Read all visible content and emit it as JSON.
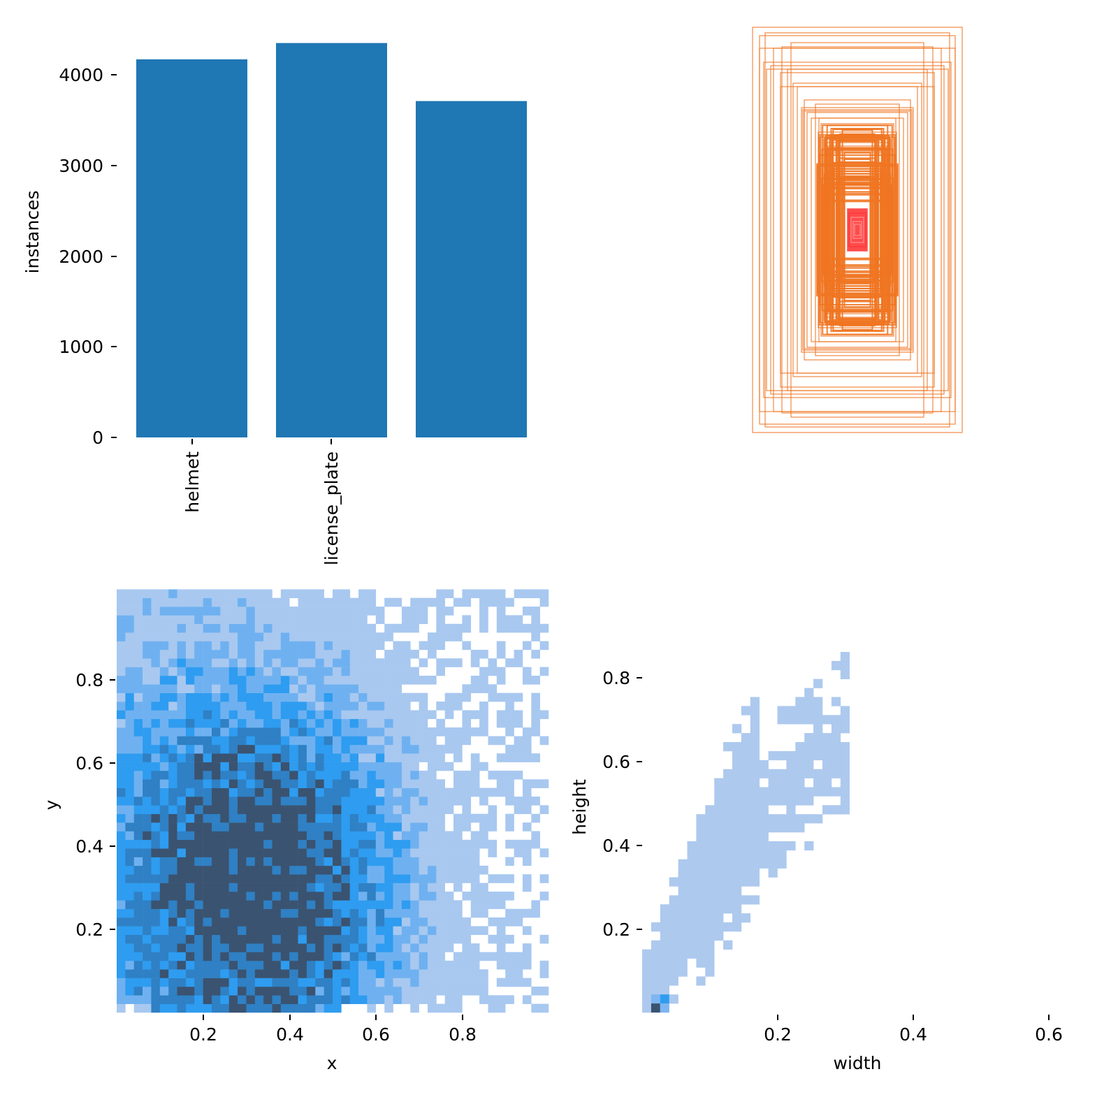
{
  "chart_data": [
    {
      "type": "bar",
      "panel": "top-left",
      "title": "",
      "categories": [
        "helmet",
        "license_plate",
        ""
      ],
      "visible_tick_labels": [
        "helmet",
        "license_plate"
      ],
      "values": [
        4170,
        4350,
        3710
      ],
      "xlabel": "",
      "ylabel": "instances",
      "yticks": [
        0,
        1000,
        2000,
        3000,
        4000
      ],
      "ylim": [
        0,
        4400
      ],
      "color": "#1f77b4",
      "grid": false
    },
    {
      "type": "other",
      "panel": "top-right",
      "description": "Overlaid bounding boxes centered at a common point (label box shapes)",
      "stroke_color": "#f07522",
      "center_color": "#ff3838",
      "axes_visible": false
    },
    {
      "type": "heatmap",
      "panel": "bottom-left",
      "title": "",
      "xlabel": "x",
      "ylabel": "y",
      "xticks": [
        0.2,
        0.4,
        0.6,
        0.8
      ],
      "yticks": [
        0.2,
        0.4,
        0.6,
        0.8
      ],
      "xlim": [
        0,
        1
      ],
      "ylim": [
        0,
        1
      ],
      "bins": 50,
      "density_peak": {
        "x": 0.32,
        "y": 0.28
      },
      "colors": [
        "#a8c8f0",
        "#6fb1f0",
        "#2e9cf0",
        "#2f80c4",
        "#3a5370"
      ]
    },
    {
      "type": "heatmap",
      "panel": "bottom-right",
      "title": "",
      "xlabel": "width",
      "ylabel": "height",
      "xticks": [
        0.2,
        0.4,
        0.6
      ],
      "yticks": [
        0.2,
        0.4,
        0.6,
        0.8
      ],
      "xlim": [
        0,
        0.63
      ],
      "ylim": [
        0,
        1
      ],
      "density_peak": {
        "width": 0.02,
        "height": 0.03
      },
      "colors": [
        "#adc9ee",
        "#7db6f2",
        "#2e9cf0",
        "#3a5370"
      ]
    }
  ],
  "labels": {
    "bar_ylabel": "instances",
    "bar_xtick_0": "helmet",
    "bar_xtick_1": "license_plate",
    "bar_ytick_0": "0",
    "bar_ytick_1": "1000",
    "bar_ytick_2": "2000",
    "bar_ytick_3": "3000",
    "bar_ytick_4": "4000",
    "xy_xlabel": "x",
    "xy_ylabel": "y",
    "xy_xtick_0": "0.2",
    "xy_xtick_1": "0.4",
    "xy_xtick_2": "0.6",
    "xy_xtick_3": "0.8",
    "xy_ytick_0": "0.2",
    "xy_ytick_1": "0.4",
    "xy_ytick_2": "0.6",
    "xy_ytick_3": "0.8",
    "wh_xlabel": "width",
    "wh_ylabel": "height",
    "wh_xtick_0": "0.2",
    "wh_xtick_1": "0.4",
    "wh_xtick_2": "0.6",
    "wh_ytick_0": "0.2",
    "wh_ytick_1": "0.4",
    "wh_ytick_2": "0.6",
    "wh_ytick_3": "0.8"
  }
}
